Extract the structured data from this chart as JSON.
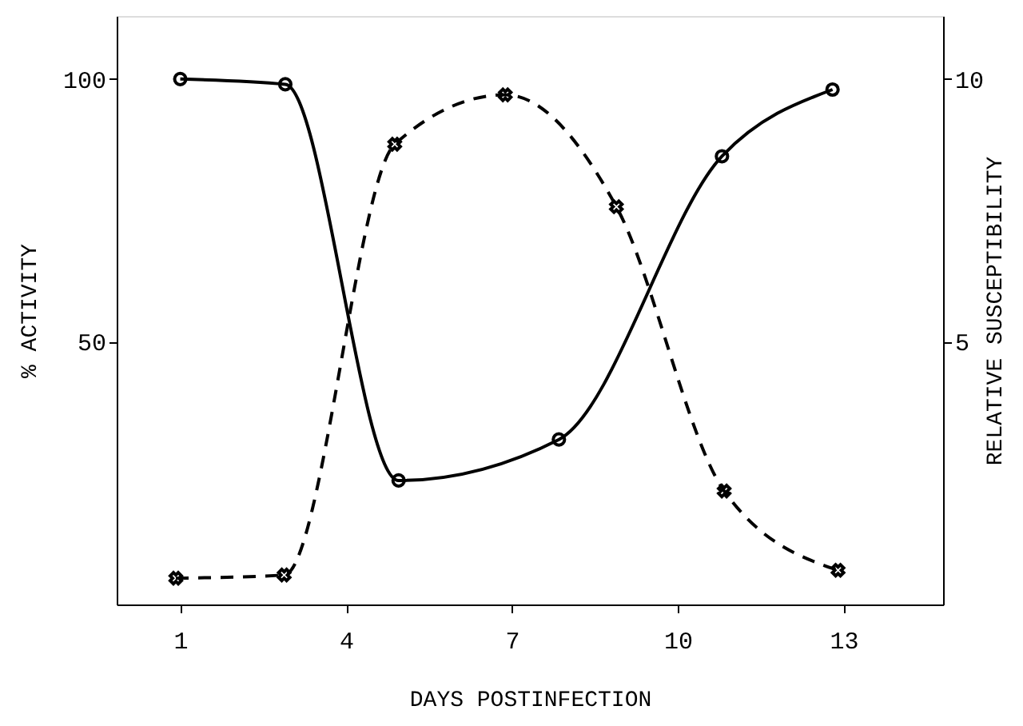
{
  "chart_data": {
    "type": "line",
    "xlabel": "DAYS POSTINFECTION",
    "ylabel": "% ACTIVITY",
    "y2label": "RELATIVE SUSCEPTIBILITY",
    "xlim": [
      -0.15,
      14.8
    ],
    "xticks": [
      1,
      4,
      7,
      10,
      13
    ],
    "ylim": [
      0,
      112
    ],
    "yticks": [
      50,
      100
    ],
    "y2lim": [
      0,
      11.2
    ],
    "y2ticks": [
      5,
      10
    ],
    "grid": false,
    "series": [
      {
        "color": "#000000",
        "x": [
          1,
          2.9,
          4.95,
          7.85,
          10.8,
          12.8
        ],
        "values": [
          100,
          99,
          23.6,
          31.4,
          85.3,
          98
        ],
        "marker": "circle",
        "line_style": "solid"
      },
      {
        "color": "#000000",
        "axis": "y2",
        "x": [
          0.92,
          2.88,
          4.88,
          6.88,
          8.89,
          10.84,
          12.9
        ],
        "values": [
          0.5,
          0.56,
          8.76,
          9.7,
          7.57,
          2.16,
          0.65
        ],
        "marker": "cross",
        "line_style": "dashed"
      }
    ]
  }
}
